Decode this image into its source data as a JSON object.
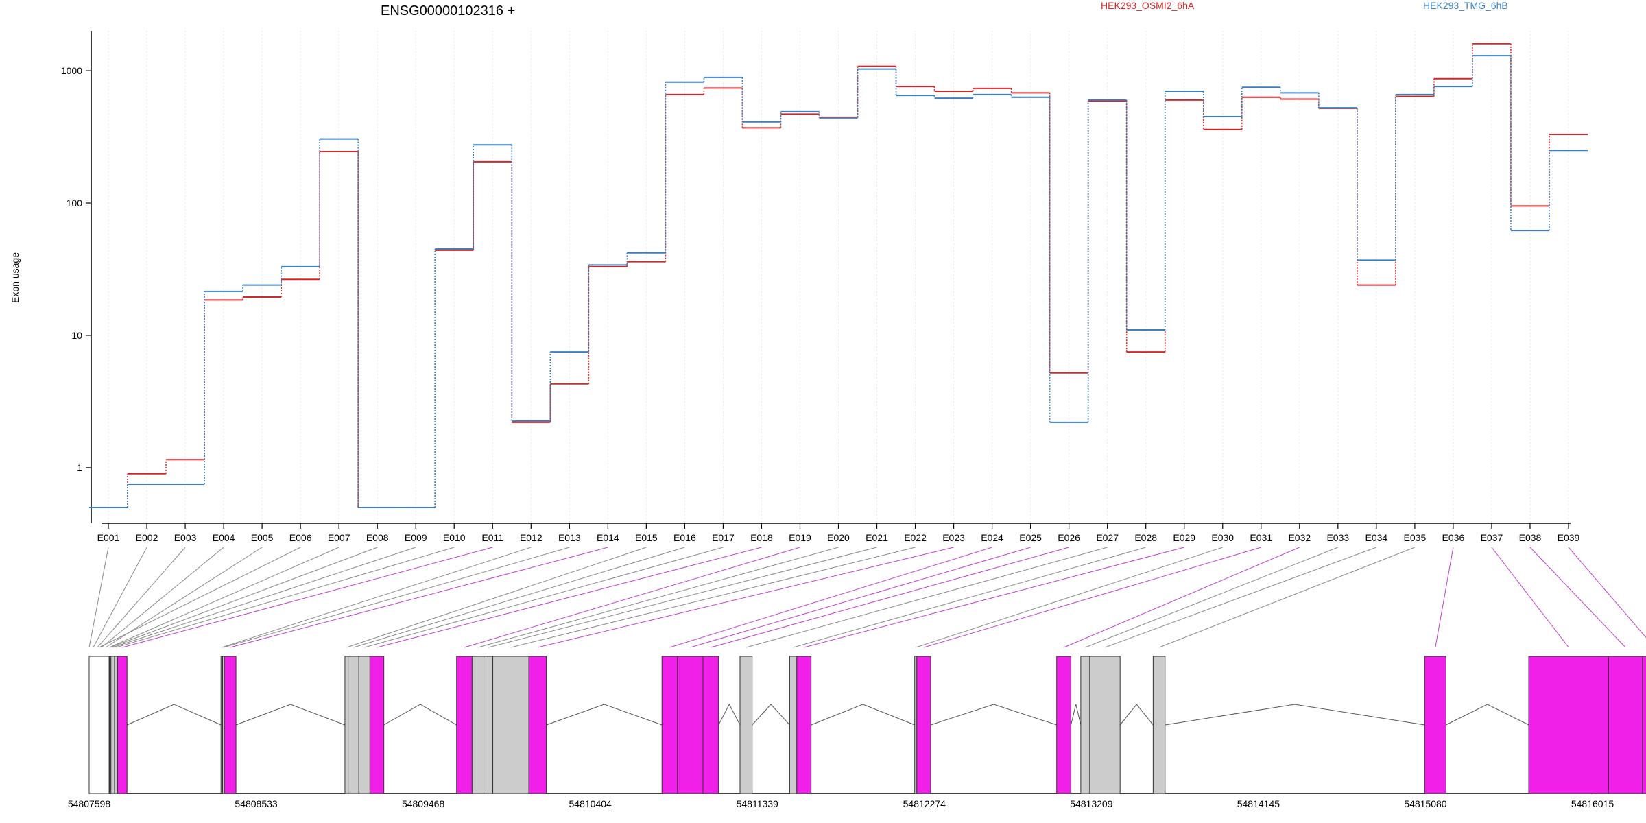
{
  "chart_data": {
    "type": "line",
    "title": "ENSG00000102316 +",
    "ylabel": "Exon usage",
    "xlabel": "",
    "yscale": "log",
    "ylim": [
      0.5,
      2000
    ],
    "y_ticks": [
      1,
      10,
      100,
      1000
    ],
    "y_tick_labels": [
      "1",
      "10",
      "100",
      "1000"
    ],
    "categories": [
      "E001",
      "E002",
      "E003",
      "E004",
      "E005",
      "E006",
      "E007",
      "E008",
      "E009",
      "E010",
      "E011",
      "E012",
      "E013",
      "E014",
      "E015",
      "E016",
      "E017",
      "E018",
      "E019",
      "E020",
      "E021",
      "E022",
      "E023",
      "E024",
      "E025",
      "E026",
      "E027",
      "E028",
      "E029",
      "E030",
      "E031",
      "E032",
      "E033",
      "E034",
      "E035",
      "E036",
      "E037",
      "E038",
      "E039"
    ],
    "grid": "vertical dotted",
    "legend_position": "top",
    "series": [
      {
        "name": "HEK293_OSMI2_6hA",
        "color": "#d62728",
        "values": [
          0.5,
          0.9,
          1.15,
          18.5,
          19.5,
          26.5,
          245,
          0.5,
          0.5,
          44,
          205,
          2.2,
          4.3,
          33,
          36,
          660,
          740,
          370,
          470,
          445,
          1080,
          760,
          700,
          735,
          680,
          5.2,
          590,
          7.5,
          600,
          360,
          630,
          610,
          520,
          24,
          640,
          870,
          1600,
          95,
          330
        ]
      },
      {
        "name": "HEK293_TMG_6hB",
        "color": "#3a7fc1",
        "values": [
          0.5,
          0.75,
          0.75,
          21.5,
          24,
          33,
          305,
          0.5,
          0.5,
          45,
          275,
          2.25,
          7.5,
          34,
          42,
          820,
          890,
          410,
          490,
          440,
          1030,
          650,
          620,
          660,
          630,
          2.2,
          600,
          11,
          700,
          450,
          750,
          680,
          525,
          37,
          660,
          760,
          1300,
          62,
          250
        ]
      }
    ],
    "gene_model": {
      "coordinate_labels": [
        "54807598",
        "54808533",
        "54809468",
        "54810404",
        "54811339",
        "54812274",
        "54813209",
        "54814145",
        "54815080",
        "54816015"
      ],
      "coord_range": [
        54807598,
        54816015
      ],
      "exon_spans": [
        [
          54807598,
          54807710
        ],
        [
          54807710,
          54807712
        ],
        [
          54807712,
          54807720
        ],
        [
          54807720,
          54807740
        ],
        [
          54807740,
          54807757
        ],
        [
          54807757,
          54807810
        ],
        [
          54808336,
          54808345
        ],
        [
          54808345,
          54808355
        ],
        [
          54808355,
          54808420
        ],
        [
          54809030,
          54809048
        ],
        [
          54809048,
          54809108
        ],
        [
          54809108,
          54809170
        ],
        [
          54809170,
          54809248
        ],
        [
          54809655,
          54809742
        ],
        [
          54809742,
          54809808
        ],
        [
          54809808,
          54809858
        ],
        [
          54809858,
          54810060
        ],
        [
          54810060,
          54810158
        ],
        [
          54810805,
          54810892
        ],
        [
          54810892,
          54811035
        ],
        [
          54811035,
          54811122
        ],
        [
          54811242,
          54811310
        ],
        [
          54811520,
          54811560
        ],
        [
          54811560,
          54811640
        ],
        [
          54812220,
          54812232
        ],
        [
          54812232,
          54812310
        ],
        [
          54813015,
          54813095
        ],
        [
          54813150,
          54813200
        ],
        [
          54813200,
          54813370
        ],
        [
          54813555,
          54813622
        ],
        [
          54815075,
          54815195
        ],
        [
          54815658,
          54816105
        ],
        [
          54816105,
          54816295
        ],
        [
          54816295,
          54816430
        ]
      ],
      "exon_types": [
        "white",
        "gray",
        "gray",
        "gray",
        "gray",
        "magenta",
        "gray",
        "gray",
        "magenta",
        "gray",
        "gray",
        "gray",
        "magenta",
        "magenta",
        "gray",
        "gray",
        "gray",
        "magenta",
        "magenta",
        "magenta",
        "magenta",
        "gray",
        "gray",
        "magenta",
        "gray",
        "magenta",
        "magenta",
        "gray",
        "gray",
        "gray",
        "magenta",
        "magenta",
        "magenta",
        "magenta"
      ],
      "colors": {
        "magenta": "#f020e8",
        "gray": "#cccccc",
        "white": "#ffffff"
      }
    }
  }
}
